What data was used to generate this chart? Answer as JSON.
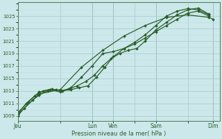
{
  "bg_color": "#cce8ea",
  "grid_color_major": "#aacdd4",
  "grid_color_minor": "#c0dde0",
  "line_color": "#2a5e2a",
  "marker_color": "#2a5e2a",
  "ylabel_ticks": [
    1009,
    1011,
    1013,
    1015,
    1017,
    1019,
    1021,
    1023,
    1025
  ],
  "xlabel": "Pression niveau de la mer( hPa )",
  "day_labels": [
    "Jeu",
    "",
    "Lun",
    "Ven",
    "",
    "Sam",
    "",
    "Dim"
  ],
  "day_positions": [
    0.0,
    2.0,
    3.5,
    4.5,
    5.5,
    6.5,
    8.0,
    9.2
  ],
  "vline_positions": [
    0.0,
    3.5,
    4.5,
    6.5,
    9.2
  ],
  "series1_x": [
    0,
    0.3,
    0.7,
    1.0,
    1.4,
    1.8,
    2.1,
    2.5,
    2.9,
    3.3,
    3.7,
    4.1,
    4.5,
    5.0,
    5.5,
    6.0,
    6.5,
    7.0,
    7.5,
    8.0,
    8.5,
    9.0
  ],
  "series1_y": [
    1009.0,
    1010.2,
    1011.5,
    1012.3,
    1013.0,
    1013.2,
    1013.0,
    1013.2,
    1013.5,
    1013.8,
    1015.2,
    1016.8,
    1018.5,
    1019.8,
    1020.5,
    1021.5,
    1022.5,
    1023.5,
    1024.5,
    1025.5,
    1025.8,
    1025.0
  ],
  "series2_x": [
    0,
    0.4,
    0.8,
    1.2,
    1.6,
    2.0,
    2.4,
    2.8,
    3.2,
    3.6,
    4.0,
    4.4,
    4.8,
    5.2,
    5.6,
    6.0,
    6.5,
    7.0,
    7.5,
    8.0,
    8.5,
    9.0
  ],
  "series2_y": [
    1009.3,
    1011.0,
    1012.2,
    1013.0,
    1013.3,
    1013.0,
    1013.3,
    1013.8,
    1014.5,
    1015.5,
    1017.0,
    1018.2,
    1019.0,
    1019.5,
    1019.8,
    1021.0,
    1022.8,
    1024.0,
    1025.2,
    1026.0,
    1026.3,
    1025.3
  ],
  "series3_x": [
    0,
    0.5,
    1.0,
    1.5,
    2.0,
    2.5,
    3.0,
    3.5,
    4.0,
    4.5,
    5.0,
    5.5,
    6.0,
    6.5,
    7.0,
    7.5,
    8.0,
    8.5,
    9.0
  ],
  "series3_y": [
    1009.5,
    1011.2,
    1012.8,
    1013.2,
    1012.8,
    1013.5,
    1015.2,
    1017.0,
    1019.0,
    1019.3,
    1019.8,
    1020.8,
    1022.0,
    1023.5,
    1025.0,
    1025.8,
    1026.2,
    1026.0,
    1025.2
  ],
  "series4_x": [
    0,
    1.0,
    2.0,
    3.0,
    4.0,
    5.0,
    6.0,
    7.0,
    8.0,
    9.0,
    9.2
  ],
  "series4_y": [
    1009.2,
    1012.5,
    1013.2,
    1016.8,
    1019.5,
    1021.8,
    1023.5,
    1024.8,
    1025.2,
    1024.8,
    1024.5
  ],
  "xmin": 0.0,
  "xmax": 9.5,
  "ymin": 1008.2,
  "ymax": 1027.2
}
